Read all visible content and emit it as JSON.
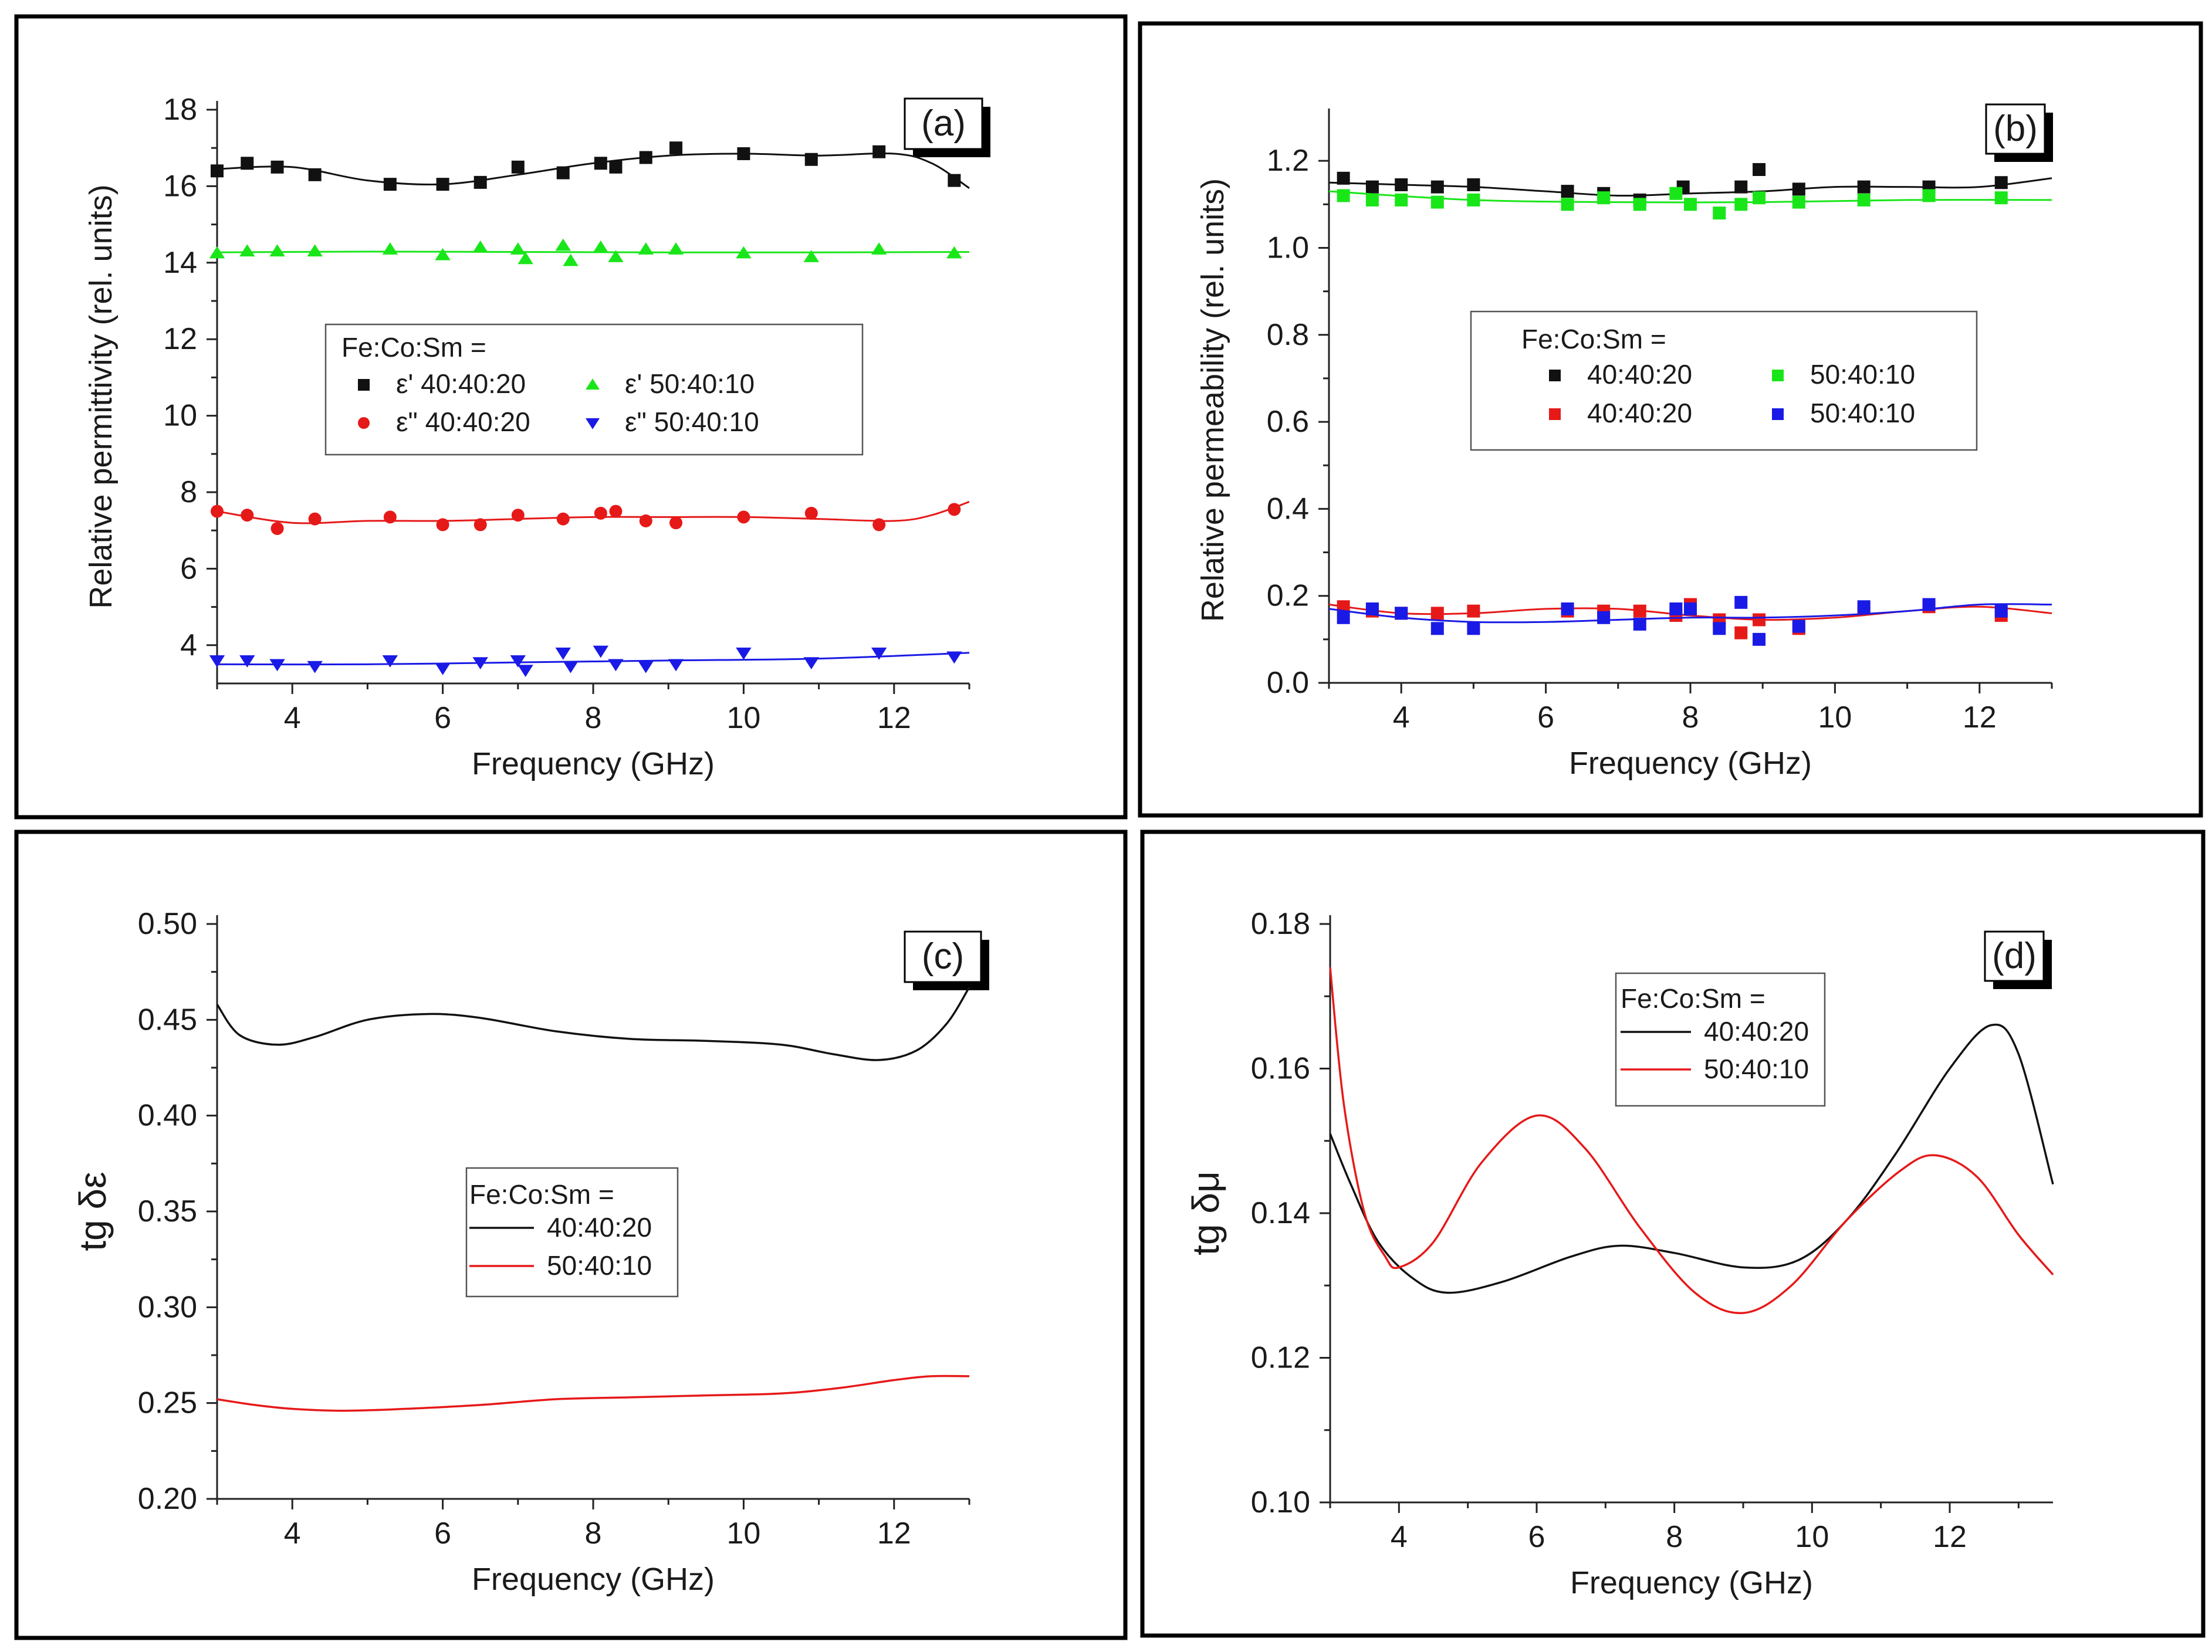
{
  "chart_data": [
    {
      "id": "a",
      "type": "scatter",
      "panel_label": "(a)",
      "xlabel": "Frequency (GHz)",
      "ylabel": "Relative permittivity (rel. units)",
      "xlim": [
        3,
        13
      ],
      "ylim": [
        3,
        18
      ],
      "xticks": [
        4,
        6,
        8,
        10,
        12
      ],
      "yticks": [
        4,
        6,
        8,
        10,
        12,
        14,
        16,
        18
      ],
      "legend": {
        "title": "Fe:Co:Sm =",
        "position": "center",
        "entries": [
          {
            "label": "ε' 40:40:20",
            "series": 0
          },
          {
            "label": "ε' 50:40:10",
            "series": 1
          },
          {
            "label": "ε\" 40:40:20",
            "series": 2
          },
          {
            "label": "ε\" 50:40:10",
            "series": 3
          }
        ]
      },
      "series": [
        {
          "name": "ε' 40:40:20",
          "marker": "square",
          "color": "#111111",
          "x": [
            3.0,
            3.4,
            3.8,
            4.3,
            5.3,
            6.0,
            6.5,
            7.0,
            7.6,
            8.1,
            8.3,
            8.7,
            9.1,
            10.0,
            10.9,
            11.8,
            12.8
          ],
          "y": [
            16.4,
            16.6,
            16.5,
            16.3,
            16.05,
            16.05,
            16.1,
            16.5,
            16.35,
            16.6,
            16.5,
            16.75,
            17.0,
            16.85,
            16.7,
            16.9,
            16.15
          ],
          "fit_x": [
            3.0,
            4.0,
            5.0,
            6.0,
            7.0,
            8.0,
            9.0,
            10.0,
            11.0,
            12.0,
            12.5,
            13.0
          ],
          "fit_y": [
            16.45,
            16.5,
            16.15,
            16.05,
            16.3,
            16.6,
            16.8,
            16.85,
            16.8,
            16.85,
            16.6,
            15.95
          ]
        },
        {
          "name": "ε' 50:40:10",
          "marker": "triangle-up",
          "color": "#19e619",
          "x": [
            3.0,
            3.4,
            3.8,
            4.3,
            5.3,
            6.0,
            6.5,
            7.0,
            7.1,
            7.6,
            7.7,
            8.1,
            8.3,
            8.7,
            9.1,
            10.0,
            10.9,
            11.8,
            12.8
          ],
          "y": [
            14.25,
            14.3,
            14.3,
            14.3,
            14.35,
            14.2,
            14.4,
            14.35,
            14.1,
            14.45,
            14.05,
            14.4,
            14.15,
            14.35,
            14.35,
            14.25,
            14.15,
            14.35,
            14.25
          ],
          "fit_x": [
            3.0,
            5.0,
            7.0,
            9.0,
            11.0,
            13.0
          ],
          "fit_y": [
            14.27,
            14.29,
            14.28,
            14.27,
            14.27,
            14.28
          ]
        },
        {
          "name": "ε\" 40:40:20",
          "marker": "circle",
          "color": "#e61919",
          "x": [
            3.0,
            3.4,
            3.8,
            4.3,
            5.3,
            6.0,
            6.5,
            7.0,
            7.6,
            8.1,
            8.3,
            8.7,
            9.1,
            10.0,
            10.9,
            11.8,
            12.8
          ],
          "y": [
            7.5,
            7.4,
            7.05,
            7.3,
            7.35,
            7.15,
            7.15,
            7.4,
            7.3,
            7.45,
            7.5,
            7.25,
            7.2,
            7.35,
            7.45,
            7.15,
            7.55
          ],
          "fit_x": [
            3.0,
            4.0,
            5.0,
            6.0,
            7.0,
            8.0,
            9.0,
            10.0,
            11.0,
            12.0,
            12.5,
            13.0
          ],
          "fit_y": [
            7.5,
            7.2,
            7.25,
            7.25,
            7.3,
            7.35,
            7.35,
            7.35,
            7.3,
            7.25,
            7.4,
            7.75
          ]
        },
        {
          "name": "ε\" 50:40:10",
          "marker": "triangle-down",
          "color": "#1a1ae6",
          "x": [
            3.0,
            3.4,
            3.8,
            4.3,
            5.3,
            6.0,
            6.5,
            7.0,
            7.1,
            7.6,
            7.7,
            8.1,
            8.3,
            8.7,
            9.1,
            10.0,
            10.9,
            11.8,
            12.8
          ],
          "y": [
            3.6,
            3.6,
            3.5,
            3.45,
            3.6,
            3.4,
            3.55,
            3.6,
            3.35,
            3.8,
            3.45,
            3.85,
            3.5,
            3.45,
            3.5,
            3.8,
            3.55,
            3.8,
            3.7
          ],
          "fit_x": [
            3.0,
            5.0,
            7.0,
            9.0,
            11.0,
            13.0
          ],
          "fit_y": [
            3.5,
            3.5,
            3.55,
            3.6,
            3.65,
            3.8
          ]
        }
      ]
    },
    {
      "id": "b",
      "type": "scatter",
      "panel_label": "(b)",
      "xlabel": "Frequency (GHz)",
      "ylabel": "Relative permeability (rel. units)",
      "xlim": [
        3,
        13
      ],
      "ylim": [
        0,
        1.3
      ],
      "xticks": [
        4,
        6,
        8,
        10,
        12
      ],
      "yticks": [
        0.0,
        0.2,
        0.4,
        0.6,
        0.8,
        1.0,
        1.2
      ],
      "ytick_labels": [
        "0.0",
        "0.2",
        "0.4",
        "0.6",
        "0.8",
        "1.0",
        "1.2"
      ],
      "legend": {
        "title": "Fe:Co:Sm =",
        "position": "center",
        "entries": [
          {
            "label": "40:40:20",
            "series": 0
          },
          {
            "label": "50:40:10",
            "series": 1
          },
          {
            "label": "40:40:20",
            "series": 2
          },
          {
            "label": "50:40:10",
            "series": 3
          }
        ]
      },
      "series": [
        {
          "name": "40:40:20",
          "marker": "square",
          "color": "#111111",
          "x": [
            3.2,
            3.6,
            4.0,
            4.5,
            5.0,
            6.3,
            6.8,
            7.3,
            7.9,
            8.7,
            8.95,
            9.5,
            10.4,
            11.3,
            12.3
          ],
          "y": [
            1.16,
            1.14,
            1.145,
            1.14,
            1.145,
            1.13,
            1.125,
            1.11,
            1.14,
            1.14,
            1.18,
            1.135,
            1.14,
            1.14,
            1.15
          ],
          "fit_x": [
            3.0,
            4.0,
            5.0,
            6.0,
            7.0,
            8.0,
            9.0,
            10.0,
            11.0,
            12.0,
            13.0
          ],
          "fit_y": [
            1.15,
            1.145,
            1.14,
            1.13,
            1.12,
            1.125,
            1.13,
            1.14,
            1.14,
            1.14,
            1.16
          ]
        },
        {
          "name": "50:40:10",
          "marker": "square",
          "color": "#19e619",
          "x": [
            3.2,
            3.6,
            4.0,
            4.5,
            5.0,
            6.3,
            6.8,
            7.3,
            7.8,
            8.0,
            8.4,
            8.7,
            8.95,
            9.5,
            10.4,
            11.3,
            12.3
          ],
          "y": [
            1.12,
            1.11,
            1.11,
            1.105,
            1.11,
            1.1,
            1.115,
            1.1,
            1.125,
            1.1,
            1.08,
            1.1,
            1.115,
            1.105,
            1.11,
            1.12,
            1.115
          ],
          "fit_x": [
            3.0,
            5.0,
            7.0,
            9.0,
            11.0,
            13.0
          ],
          "fit_y": [
            1.13,
            1.11,
            1.105,
            1.105,
            1.11,
            1.11
          ]
        },
        {
          "name": "40:40:20",
          "marker": "square",
          "color": "#e61919",
          "x": [
            3.2,
            3.6,
            4.0,
            4.5,
            5.0,
            6.3,
            6.8,
            7.3,
            7.8,
            8.0,
            8.4,
            8.7,
            8.95,
            9.5,
            10.4,
            11.3,
            12.3
          ],
          "y": [
            0.175,
            0.165,
            0.16,
            0.16,
            0.165,
            0.165,
            0.165,
            0.165,
            0.155,
            0.18,
            0.145,
            0.115,
            0.145,
            0.125,
            0.17,
            0.175,
            0.155
          ],
          "fit_x": [
            3.0,
            4.0,
            5.0,
            6.0,
            7.0,
            8.0,
            9.0,
            10.0,
            11.0,
            12.0,
            13.0
          ],
          "fit_y": [
            0.18,
            0.16,
            0.16,
            0.17,
            0.17,
            0.155,
            0.145,
            0.15,
            0.165,
            0.175,
            0.16
          ]
        },
        {
          "name": "50:40:10",
          "marker": "square",
          "color": "#1a1ae6",
          "x": [
            3.2,
            3.6,
            4.0,
            4.5,
            5.0,
            6.3,
            6.8,
            7.3,
            7.8,
            8.0,
            8.4,
            8.7,
            8.95,
            9.5,
            10.4,
            11.3,
            12.3
          ],
          "y": [
            0.15,
            0.17,
            0.16,
            0.125,
            0.125,
            0.17,
            0.15,
            0.135,
            0.17,
            0.17,
            0.125,
            0.185,
            0.1,
            0.13,
            0.175,
            0.18,
            0.165
          ],
          "fit_x": [
            3.0,
            4.0,
            5.0,
            6.0,
            7.0,
            8.0,
            9.0,
            10.0,
            11.0,
            12.0,
            13.0
          ],
          "fit_y": [
            0.17,
            0.15,
            0.14,
            0.14,
            0.145,
            0.15,
            0.15,
            0.155,
            0.165,
            0.18,
            0.18
          ]
        }
      ]
    },
    {
      "id": "c",
      "type": "line",
      "panel_label": "(c)",
      "xlabel": "Frequency (GHz)",
      "ylabel": "tg δε",
      "xlim": [
        3,
        13
      ],
      "ylim": [
        0.2,
        0.5
      ],
      "xticks": [
        4,
        6,
        8,
        10,
        12
      ],
      "yticks": [
        0.2,
        0.25,
        0.3,
        0.35,
        0.4,
        0.45,
        0.5
      ],
      "ytick_labels": [
        "0.20",
        "0.25",
        "0.30",
        "0.35",
        "0.40",
        "0.45",
        "0.50"
      ],
      "legend": {
        "title": "Fe:Co:Sm =",
        "position": "center",
        "entries": [
          {
            "label": "40:40:20",
            "series": 0
          },
          {
            "label": "50:40:10",
            "series": 1
          }
        ]
      },
      "series": [
        {
          "name": "40:40:20",
          "color": "#111111",
          "x": [
            3.0,
            3.3,
            3.8,
            4.3,
            5.0,
            5.8,
            6.5,
            7.5,
            8.5,
            9.5,
            10.5,
            11.2,
            11.8,
            12.3,
            12.7,
            13.0
          ],
          "y": [
            0.458,
            0.442,
            0.437,
            0.441,
            0.45,
            0.453,
            0.451,
            0.444,
            0.44,
            0.439,
            0.437,
            0.432,
            0.429,
            0.434,
            0.448,
            0.467
          ]
        },
        {
          "name": "50:40:10",
          "color": "#e61919",
          "x": [
            3.0,
            3.5,
            4.0,
            4.7,
            5.5,
            6.5,
            7.5,
            8.5,
            9.5,
            10.5,
            11.3,
            12.0,
            12.5,
            13.0
          ],
          "y": [
            0.252,
            0.249,
            0.247,
            0.246,
            0.247,
            0.249,
            0.252,
            0.253,
            0.254,
            0.255,
            0.258,
            0.262,
            0.264,
            0.264
          ]
        }
      ]
    },
    {
      "id": "d",
      "type": "line",
      "panel_label": "(d)",
      "xlabel": "Frequency (GHz)",
      "ylabel": "tg δμ",
      "xlim": [
        3,
        13.5
      ],
      "ylim": [
        0.1,
        0.18
      ],
      "xticks": [
        4,
        6,
        8,
        10,
        12
      ],
      "yticks": [
        0.1,
        0.12,
        0.14,
        0.16,
        0.18
      ],
      "ytick_labels": [
        "0.10",
        "0.12",
        "0.14",
        "0.16",
        "0.18"
      ],
      "legend": {
        "title": "Fe:Co:Sm =",
        "position": "top-center",
        "entries": [
          {
            "label": "40:40:20",
            "series": 0
          },
          {
            "label": "50:40:10",
            "series": 1
          }
        ]
      },
      "series": [
        {
          "name": "40:40:20",
          "color": "#111111",
          "x": [
            3.0,
            3.3,
            3.7,
            4.2,
            4.7,
            5.5,
            6.5,
            7.2,
            8.0,
            9.0,
            9.8,
            10.5,
            11.2,
            12.0,
            12.6,
            13.0,
            13.5
          ],
          "y": [
            0.151,
            0.144,
            0.136,
            0.131,
            0.129,
            0.1305,
            0.134,
            0.1355,
            0.1345,
            0.1325,
            0.1335,
            0.139,
            0.148,
            0.16,
            0.166,
            0.162,
            0.144
          ]
        },
        {
          "name": "50:40:10",
          "color": "#e61919",
          "x": [
            3.0,
            3.2,
            3.5,
            3.8,
            4.0,
            4.5,
            5.2,
            6.0,
            6.7,
            7.5,
            8.3,
            9.0,
            9.7,
            10.5,
            11.3,
            11.8,
            12.4,
            13.0,
            13.5
          ],
          "y": [
            0.174,
            0.155,
            0.14,
            0.134,
            0.1325,
            0.136,
            0.147,
            0.1535,
            0.149,
            0.138,
            0.129,
            0.1262,
            0.13,
            0.139,
            0.146,
            0.148,
            0.145,
            0.137,
            0.1315
          ]
        }
      ]
    }
  ]
}
